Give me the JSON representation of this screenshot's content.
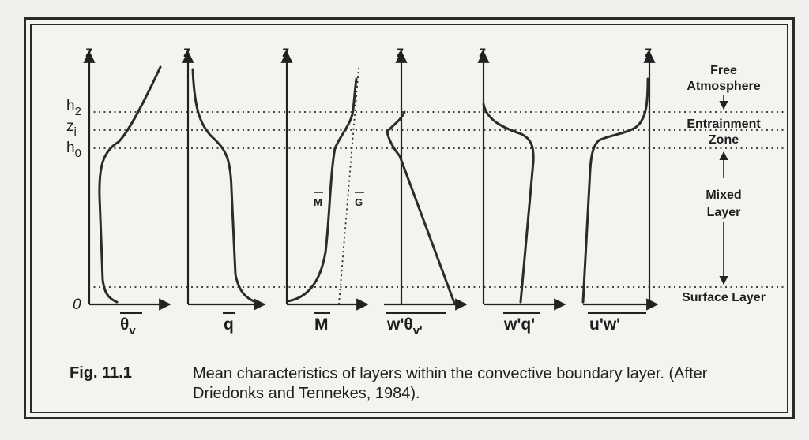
{
  "figure": {
    "axis_label": "z",
    "origin_label": "0",
    "levels": {
      "h2": "h",
      "h2_sub": "2",
      "zi": "z",
      "zi_sub": "i",
      "h0": "h",
      "h0_sub": "0"
    },
    "panels": [
      {
        "var": "θ",
        "var_sub": "v"
      },
      {
        "var": "q"
      },
      {
        "var": "M"
      },
      {
        "var": "w'θ",
        "var_sub": "v'"
      },
      {
        "var": "w'q'"
      },
      {
        "var": "u'w'"
      }
    ],
    "wind_labels": {
      "m": "M",
      "g": "G"
    },
    "layers": {
      "free_line1": "Free",
      "free_line2": "Atmosphere",
      "entrain_line1": "Entrainment",
      "entrain_line2": "Zone",
      "mixed_line1": "Mixed",
      "mixed_line2": "Layer",
      "surface": "Surface Layer"
    }
  },
  "caption": {
    "number": "Fig. 11.1",
    "text": "Mean characteristics of layers within the convective boundary layer. (After Driedonks and Tennekes, 1984)."
  }
}
